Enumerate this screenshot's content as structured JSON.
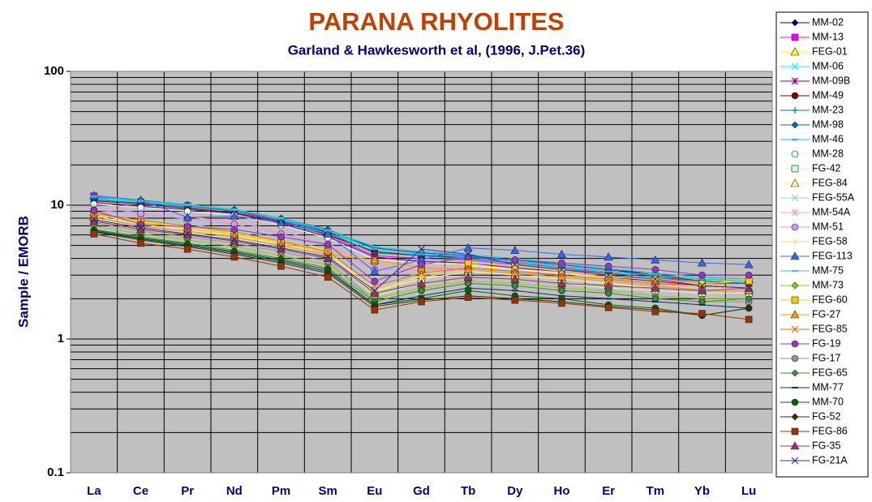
{
  "chart_data": {
    "type": "line",
    "title": "PARANA RHYOLITES",
    "subtitle": "Garland & Hawkesworth et al, (1996, J.Pet.36)",
    "y_label": "Sample / EMORB",
    "log_scale_y": true,
    "grid": true,
    "ylim": [
      0.1,
      100
    ],
    "yticks": [
      0.1,
      1,
      10,
      100
    ],
    "yminorticks": [
      0.2,
      0.3,
      0.4,
      0.5,
      0.6,
      0.7,
      0.8,
      0.9,
      2,
      3,
      4,
      5,
      6,
      7,
      8,
      9,
      20,
      30,
      40,
      50,
      60,
      70,
      80,
      90
    ],
    "categories": [
      "La",
      "Ce",
      "Pr",
      "Nd",
      "Pm",
      "Sm",
      "Eu",
      "Gd",
      "Tb",
      "Dy",
      "Ho",
      "Er",
      "Tm",
      "Yb",
      "Lu"
    ],
    "legend": "right",
    "series": [
      {
        "name": "MM-02",
        "color": "#000080",
        "marker": "diamond",
        "values": [
          11.5,
          10.8,
          10.0,
          9.2,
          7.9,
          6.3,
          4.8,
          4.4,
          4.2,
          3.9,
          3.6,
          3.3,
          3.0,
          2.8,
          2.7
        ]
      },
      {
        "name": "MM-13",
        "color": "#ff00ff",
        "marker": "square",
        "values": [
          11.7,
          10.6,
          9.9,
          9.0,
          7.6,
          6.0,
          4.2,
          4.0,
          3.9,
          3.6,
          3.3,
          3.1,
          2.9,
          2.6,
          2.6
        ]
      },
      {
        "name": "FEG-01",
        "color": "#ffff00",
        "marker": "triangle",
        "values": [
          8.8,
          7.6,
          6.9,
          6.2,
          5.4,
          4.6,
          2.2,
          3.0,
          3.5,
          3.3,
          3.1,
          2.9,
          2.7,
          2.6,
          2.8
        ]
      },
      {
        "name": "MM-06",
        "color": "#00ffff",
        "marker": "x",
        "values": [
          11.2,
          10.5,
          9.8,
          9.0,
          7.8,
          6.2,
          4.6,
          4.1,
          4.0,
          3.8,
          3.5,
          3.2,
          3.0,
          2.8,
          2.7
        ]
      },
      {
        "name": "MM-09B",
        "color": "#800080",
        "marker": "asterisk",
        "values": [
          10.5,
          9.8,
          9.3,
          8.7,
          7.3,
          5.8,
          4.1,
          3.8,
          3.7,
          3.4,
          3.2,
          2.9,
          2.7,
          2.5,
          2.4
        ]
      },
      {
        "name": "MM-49",
        "color": "#800000",
        "marker": "circle",
        "values": [
          10.8,
          10.2,
          9.5,
          8.8,
          7.5,
          6.0,
          4.5,
          4.2,
          4.1,
          3.8,
          3.5,
          3.2,
          3.0,
          2.7,
          2.6
        ]
      },
      {
        "name": "MM-23",
        "color": "#008080",
        "marker": "plus",
        "values": [
          11.0,
          10.4,
          9.7,
          9.1,
          7.7,
          6.2,
          4.4,
          4.2,
          4.0,
          3.7,
          3.4,
          3.1,
          2.9,
          2.7,
          2.6
        ]
      },
      {
        "name": "MM-98",
        "color": "#0066cc",
        "marker": "diamond",
        "values": [
          11.3,
          10.9,
          10.1,
          9.3,
          8.0,
          6.6,
          4.8,
          4.4,
          4.2,
          3.9,
          3.6,
          3.3,
          3.1,
          2.9,
          2.8
        ]
      },
      {
        "name": "MM-46",
        "color": "#00ccff",
        "marker": "dash",
        "values": [
          11.4,
          10.7,
          10.0,
          9.2,
          7.9,
          6.4,
          4.7,
          4.3,
          4.1,
          3.8,
          3.5,
          3.2,
          3.0,
          2.8,
          2.7
        ]
      },
      {
        "name": "MM-28",
        "color": "#ccffff",
        "marker": "circle",
        "values": [
          10.2,
          9.6,
          9.0,
          8.4,
          7.1,
          5.7,
          3.9,
          3.7,
          3.6,
          3.3,
          3.1,
          2.8,
          2.6,
          2.4,
          2.3
        ]
      },
      {
        "name": "FG-42",
        "color": "#ccffcc",
        "marker": "square",
        "values": [
          8.0,
          6.8,
          6.2,
          5.6,
          4.9,
          4.1,
          2.1,
          2.6,
          2.9,
          2.8,
          2.6,
          2.4,
          2.3,
          2.2,
          2.2
        ]
      },
      {
        "name": "FEG-84",
        "color": "#ffff99",
        "marker": "triangle",
        "values": [
          8.3,
          7.2,
          6.5,
          5.9,
          5.1,
          4.3,
          2.3,
          2.8,
          3.2,
          3.0,
          2.8,
          2.6,
          2.4,
          2.3,
          2.3
        ]
      },
      {
        "name": "FEG-55A",
        "color": "#99ccff",
        "marker": "x",
        "values": [
          9.0,
          8.0,
          7.2,
          6.5,
          5.6,
          4.7,
          2.6,
          3.1,
          3.4,
          3.2,
          3.0,
          2.8,
          2.6,
          2.4,
          2.4
        ]
      },
      {
        "name": "MM-54A",
        "color": "#ff99cc",
        "marker": "asterisk",
        "values": [
          9.6,
          8.8,
          8.2,
          7.5,
          6.4,
          5.2,
          3.5,
          3.4,
          3.4,
          3.2,
          3.0,
          2.8,
          2.6,
          2.4,
          2.4
        ]
      },
      {
        "name": "MM-51",
        "color": "#cc99ff",
        "marker": "circle",
        "values": [
          9.2,
          8.6,
          7.9,
          7.2,
          6.1,
          5.0,
          3.3,
          3.3,
          3.3,
          3.1,
          2.9,
          2.7,
          2.5,
          2.3,
          2.3
        ]
      },
      {
        "name": "FEG-58",
        "color": "#ffcc99",
        "marker": "plus",
        "values": [
          8.5,
          7.4,
          6.7,
          6.0,
          5.2,
          4.4,
          2.4,
          2.9,
          3.3,
          3.1,
          2.9,
          2.7,
          2.5,
          2.4,
          2.4
        ]
      },
      {
        "name": "FEG-113",
        "color": "#3366ff",
        "marker": "triangle",
        "values": [
          11.8,
          10.9,
          8.1,
          8.3,
          7.4,
          6.1,
          3.2,
          3.9,
          4.8,
          4.6,
          4.3,
          4.1,
          3.9,
          3.7,
          3.6
        ]
      },
      {
        "name": "MM-75",
        "color": "#33cccc",
        "marker": "dash",
        "values": [
          11.6,
          10.8,
          10.1,
          9.3,
          8.0,
          6.5,
          4.9,
          4.5,
          4.3,
          4.0,
          3.7,
          3.4,
          3.1,
          2.9,
          2.8
        ]
      },
      {
        "name": "MM-73",
        "color": "#99cc00",
        "marker": "diamond",
        "values": [
          7.0,
          6.1,
          5.5,
          4.9,
          4.2,
          3.6,
          2.0,
          2.4,
          2.7,
          2.6,
          2.4,
          2.3,
          2.1,
          2.0,
          2.0
        ]
      },
      {
        "name": "FEG-60",
        "color": "#ffcc00",
        "marker": "square",
        "values": [
          8.6,
          7.5,
          6.8,
          6.1,
          5.3,
          4.5,
          3.8,
          3.3,
          3.7,
          3.5,
          3.2,
          2.9,
          2.8,
          2.6,
          2.7
        ]
      },
      {
        "name": "FG-27",
        "color": "#ff9900",
        "marker": "triangle",
        "values": [
          8.1,
          7.0,
          6.4,
          5.8,
          5.0,
          4.3,
          3.9,
          3.4,
          3.3,
          3.1,
          2.9,
          2.7,
          2.5,
          2.3,
          2.3
        ]
      },
      {
        "name": "FEG-85",
        "color": "#ff6600",
        "marker": "x",
        "values": [
          8.7,
          7.7,
          7.0,
          6.3,
          5.4,
          4.5,
          2.5,
          3.1,
          3.4,
          3.2,
          3.0,
          2.8,
          2.6,
          2.5,
          2.4
        ]
      },
      {
        "name": "FG-19",
        "color": "#9933cc",
        "marker": "circle",
        "values": [
          9.1,
          7.2,
          6.9,
          6.6,
          5.8,
          5.1,
          2.7,
          3.6,
          4.1,
          3.9,
          3.7,
          3.5,
          3.3,
          3.0,
          3.0
        ]
      },
      {
        "name": "FG-17",
        "color": "#969696",
        "marker": "circle",
        "values": [
          7.4,
          6.4,
          5.8,
          5.2,
          4.5,
          3.8,
          1.9,
          2.3,
          2.6,
          2.5,
          2.3,
          2.2,
          2.0,
          1.9,
          1.9
        ]
      },
      {
        "name": "FEG-65",
        "color": "#339933",
        "marker": "diamond",
        "values": [
          6.6,
          5.8,
          5.2,
          4.6,
          4.0,
          3.4,
          1.9,
          2.3,
          2.6,
          2.5,
          2.3,
          2.2,
          2.0,
          1.9,
          2.0
        ]
      },
      {
        "name": "MM-77",
        "color": "#003366",
        "marker": "dash",
        "values": [
          6.4,
          5.6,
          5.0,
          4.4,
          3.8,
          3.2,
          1.8,
          2.1,
          2.4,
          2.3,
          2.1,
          2.0,
          1.9,
          1.8,
          1.7
        ]
      },
      {
        "name": "MM-70",
        "color": "#006600",
        "marker": "circle",
        "values": [
          6.5,
          5.7,
          5.1,
          4.5,
          3.9,
          3.3,
          1.8,
          2.0,
          2.3,
          2.1,
          2.0,
          1.8,
          1.7,
          1.5,
          1.7
        ]
      },
      {
        "name": "FG-52",
        "color": "#333300",
        "marker": "diamond",
        "values": [
          6.3,
          5.5,
          4.9,
          4.3,
          3.7,
          3.1,
          1.75,
          1.95,
          2.1,
          2.0,
          1.9,
          1.75,
          1.65,
          1.5,
          1.7
        ]
      },
      {
        "name": "FEG-86",
        "color": "#993300",
        "marker": "square",
        "values": [
          6.1,
          5.2,
          4.7,
          4.1,
          3.5,
          2.9,
          1.65,
          1.9,
          2.05,
          1.95,
          1.85,
          1.72,
          1.6,
          1.55,
          1.4
        ]
      },
      {
        "name": "FG-35",
        "color": "#993366",
        "marker": "triangle",
        "values": [
          7.6,
          6.6,
          6.0,
          5.4,
          4.7,
          4.0,
          2.2,
          2.6,
          2.9,
          2.8,
          2.6,
          2.5,
          2.4,
          2.3,
          2.4
        ]
      },
      {
        "name": "FG-21A",
        "color": "#333399",
        "marker": "x",
        "values": [
          7.8,
          6.8,
          6.1,
          5.5,
          4.8,
          4.1,
          2.3,
          4.7,
          4.3,
          3.6,
          3.3,
          3.0,
          2.8,
          2.5,
          2.4
        ]
      }
    ]
  }
}
